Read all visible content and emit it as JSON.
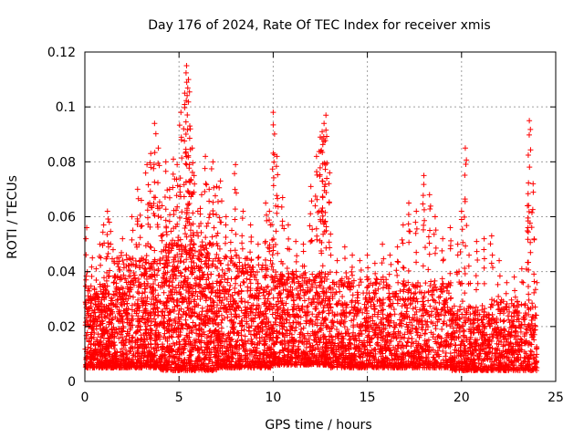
{
  "chart_data": {
    "type": "scatter",
    "title": "Day 176 of 2024, Rate Of TEC Index for receiver xmis",
    "xlabel": "GPS time / hours",
    "ylabel": "ROTI / TECUs",
    "xlim": [
      0,
      25
    ],
    "ylim": [
      0,
      0.12
    ],
    "xticks": [
      0,
      5,
      10,
      15,
      20,
      25
    ],
    "yticks": [
      0,
      0.02,
      0.04,
      0.06,
      0.08,
      0.1,
      0.12
    ],
    "xtick_labels": [
      "0",
      "5",
      "10",
      "15",
      "20",
      "25"
    ],
    "ytick_labels": [
      "0",
      "0.02",
      "0.04",
      "0.06",
      "0.08",
      "0.1",
      "0.12"
    ],
    "grid": true,
    "legend": "none",
    "marker": "+",
    "color": "#ff0000",
    "series": [
      {
        "x": [
          0.1,
          0.2,
          0.4,
          0.6,
          0.8,
          1.0,
          1.2,
          1.3,
          1.5,
          1.8,
          2.0,
          2.2,
          2.5,
          2.8,
          3.0,
          3.3,
          3.5,
          3.7,
          3.9,
          4.1,
          4.3,
          4.5,
          4.7,
          4.9,
          5.1,
          5.3,
          5.4,
          5.5,
          5.6,
          5.7,
          5.8,
          6.0,
          6.2,
          6.4,
          6.6,
          6.8,
          7.0,
          7.2,
          7.5,
          7.8,
          8.0,
          8.4,
          8.8,
          9.2,
          9.6,
          9.8,
          10.0,
          10.2,
          10.5,
          10.8,
          11.2,
          11.6,
          12.0,
          12.3,
          12.5,
          12.6,
          12.7,
          12.8,
          13.0,
          13.4,
          13.8,
          14.2,
          14.6,
          15.0,
          15.4,
          15.8,
          16.2,
          16.6,
          16.9,
          17.2,
          17.6,
          18.0,
          18.3,
          18.6,
          19.0,
          19.4,
          19.8,
          20.0,
          20.2,
          20.4,
          20.8,
          21.2,
          21.6,
          22.0,
          22.4,
          22.8,
          23.2,
          23.5,
          23.6,
          23.8,
          24.0
        ],
        "y": [
          0.056,
          0.034,
          0.045,
          0.041,
          0.05,
          0.057,
          0.062,
          0.058,
          0.048,
          0.045,
          0.052,
          0.046,
          0.06,
          0.07,
          0.066,
          0.079,
          0.083,
          0.094,
          0.085,
          0.064,
          0.08,
          0.07,
          0.081,
          0.079,
          0.098,
          0.105,
          0.115,
          0.11,
          0.092,
          0.085,
          0.075,
          0.062,
          0.068,
          0.082,
          0.07,
          0.08,
          0.071,
          0.073,
          0.06,
          0.055,
          0.079,
          0.062,
          0.057,
          0.05,
          0.065,
          0.062,
          0.098,
          0.082,
          0.067,
          0.057,
          0.051,
          0.05,
          0.071,
          0.082,
          0.089,
          0.091,
          0.094,
          0.097,
          0.076,
          0.044,
          0.049,
          0.046,
          0.044,
          0.046,
          0.043,
          0.05,
          0.046,
          0.049,
          0.057,
          0.065,
          0.062,
          0.075,
          0.068,
          0.06,
          0.052,
          0.056,
          0.05,
          0.062,
          0.085,
          0.046,
          0.051,
          0.052,
          0.053,
          0.044,
          0.036,
          0.038,
          0.041,
          0.064,
          0.095,
          0.072,
          0.036
        ]
      }
    ],
    "bulk": [
      {
        "x0": 0.0,
        "x1": 1.5,
        "lo": 0.005,
        "hi": 0.035,
        "n": 420
      },
      {
        "x0": 1.5,
        "x1": 4.0,
        "lo": 0.005,
        "hi": 0.045,
        "n": 620
      },
      {
        "x0": 4.0,
        "x1": 7.0,
        "lo": 0.004,
        "hi": 0.05,
        "n": 780
      },
      {
        "x0": 7.0,
        "x1": 10.0,
        "lo": 0.005,
        "hi": 0.045,
        "n": 700
      },
      {
        "x0": 10.0,
        "x1": 13.0,
        "lo": 0.006,
        "hi": 0.04,
        "n": 650
      },
      {
        "x0": 13.0,
        "x1": 16.0,
        "lo": 0.005,
        "hi": 0.038,
        "n": 600
      },
      {
        "x0": 16.0,
        "x1": 19.5,
        "lo": 0.005,
        "hi": 0.036,
        "n": 620
      },
      {
        "x0": 19.5,
        "x1": 21.5,
        "lo": 0.004,
        "hi": 0.028,
        "n": 380
      },
      {
        "x0": 21.5,
        "x1": 24.0,
        "lo": 0.004,
        "hi": 0.03,
        "n": 460
      }
    ]
  }
}
